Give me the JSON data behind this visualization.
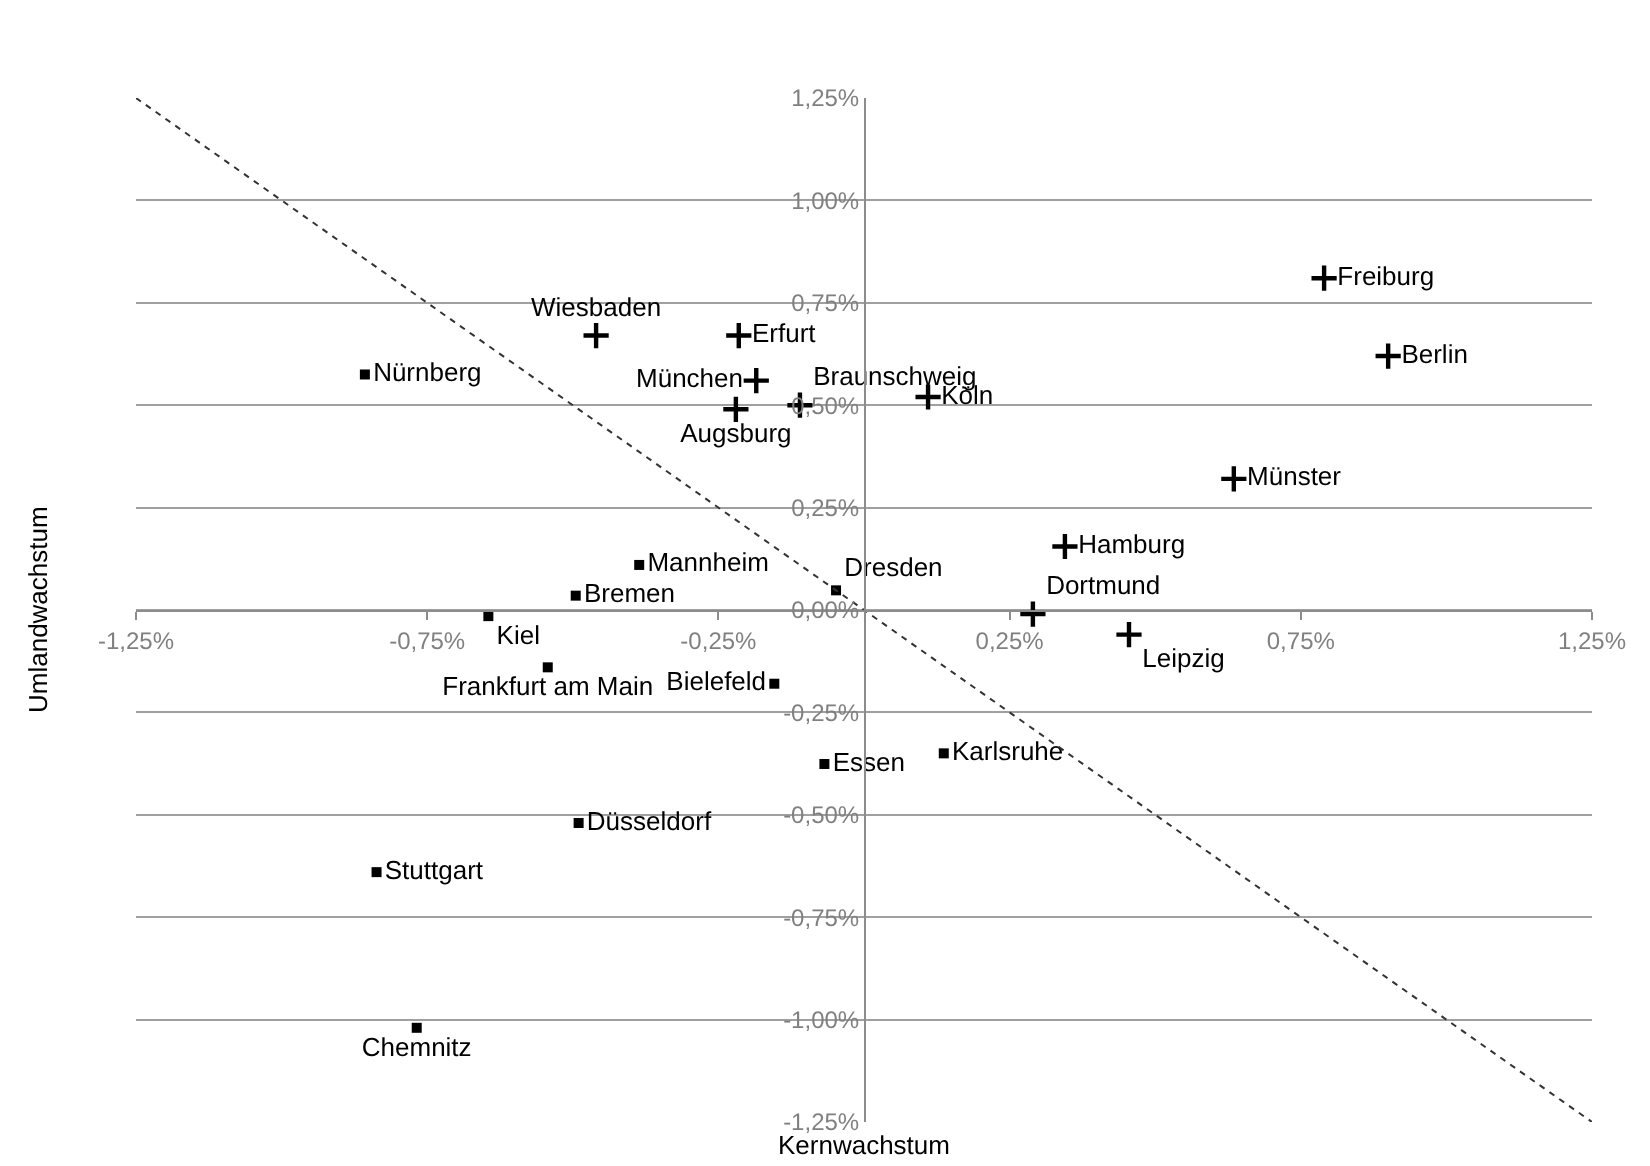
{
  "chart_data": {
    "type": "scatter",
    "xlabel": "Kernwachstum",
    "ylabel": "Umlandwachstum",
    "xlim": [
      -1.25,
      1.25
    ],
    "ylim": [
      -1.25,
      1.25
    ],
    "xticks": [
      {
        "value": -1.25,
        "label": "-1,25%"
      },
      {
        "value": -0.75,
        "label": "-0,75%"
      },
      {
        "value": -0.25,
        "label": "-0,25%"
      },
      {
        "value": 0.25,
        "label": "0,25%"
      },
      {
        "value": 0.75,
        "label": "0,75%"
      },
      {
        "value": 1.25,
        "label": "1,25%"
      }
    ],
    "yticks": [
      {
        "value": -1.25,
        "label": "-1,25%"
      },
      {
        "value": -1.0,
        "label": "-1,00%"
      },
      {
        "value": -0.75,
        "label": "-0,75%"
      },
      {
        "value": -0.5,
        "label": "-0,50%"
      },
      {
        "value": -0.25,
        "label": "-0,25%"
      },
      {
        "value": 0.0,
        "label": "0,00%"
      },
      {
        "value": 0.25,
        "label": "0,25%"
      },
      {
        "value": 0.5,
        "label": "0,50%"
      },
      {
        "value": 0.75,
        "label": "0,75%"
      },
      {
        "value": 1.0,
        "label": "1,00%"
      },
      {
        "value": 1.25,
        "label": "1,25%"
      }
    ],
    "grid": "y",
    "series": [
      {
        "marker": "cross",
        "color": "#000000",
        "x": [
          0.79,
          0.9,
          0.635,
          0.345,
          0.29,
          0.455,
          0.11,
          -0.11,
          -0.185,
          -0.22,
          -0.215,
          -0.46
        ],
        "values": [
          0.81,
          0.62,
          0.32,
          0.155,
          -0.01,
          -0.06,
          0.52,
          0.5,
          0.56,
          0.49,
          0.67,
          0.67
        ],
        "value_labels": [
          "Freiburg",
          "Berlin",
          "Münster",
          "Hamburg",
          "Dortmund",
          "Leipzig",
          "Köln",
          "Braunschweig",
          "München",
          "Augsburg",
          "Erfurt",
          "Wiesbaden"
        ]
      },
      {
        "marker": "square",
        "color": "#000000",
        "x": [
          -0.857,
          -0.386,
          -0.495,
          -0.645,
          -0.543,
          -0.048,
          -0.154,
          -0.068,
          0.137,
          -0.49,
          -0.837,
          -0.768
        ],
        "values": [
          0.575,
          0.11,
          0.035,
          -0.015,
          -0.14,
          0.048,
          -0.18,
          -0.376,
          -0.35,
          -0.52,
          -0.64,
          -1.02
        ],
        "value_labels": [
          "Nürnberg",
          "Mannheim",
          "Bremen",
          "Kiel",
          "Frankfurt am Main",
          "Dresden",
          "Bielefeld",
          "Essen",
          "Karlsruhe",
          "Düsseldorf",
          "Stuttgart",
          "Chemnitz"
        ]
      },
      {
        "type": "line",
        "line_style": "dotted",
        "marker": "none",
        "color": "#333333",
        "x": [
          -1.25,
          1.25
        ],
        "values": [
          1.25,
          -1.25
        ]
      }
    ]
  }
}
